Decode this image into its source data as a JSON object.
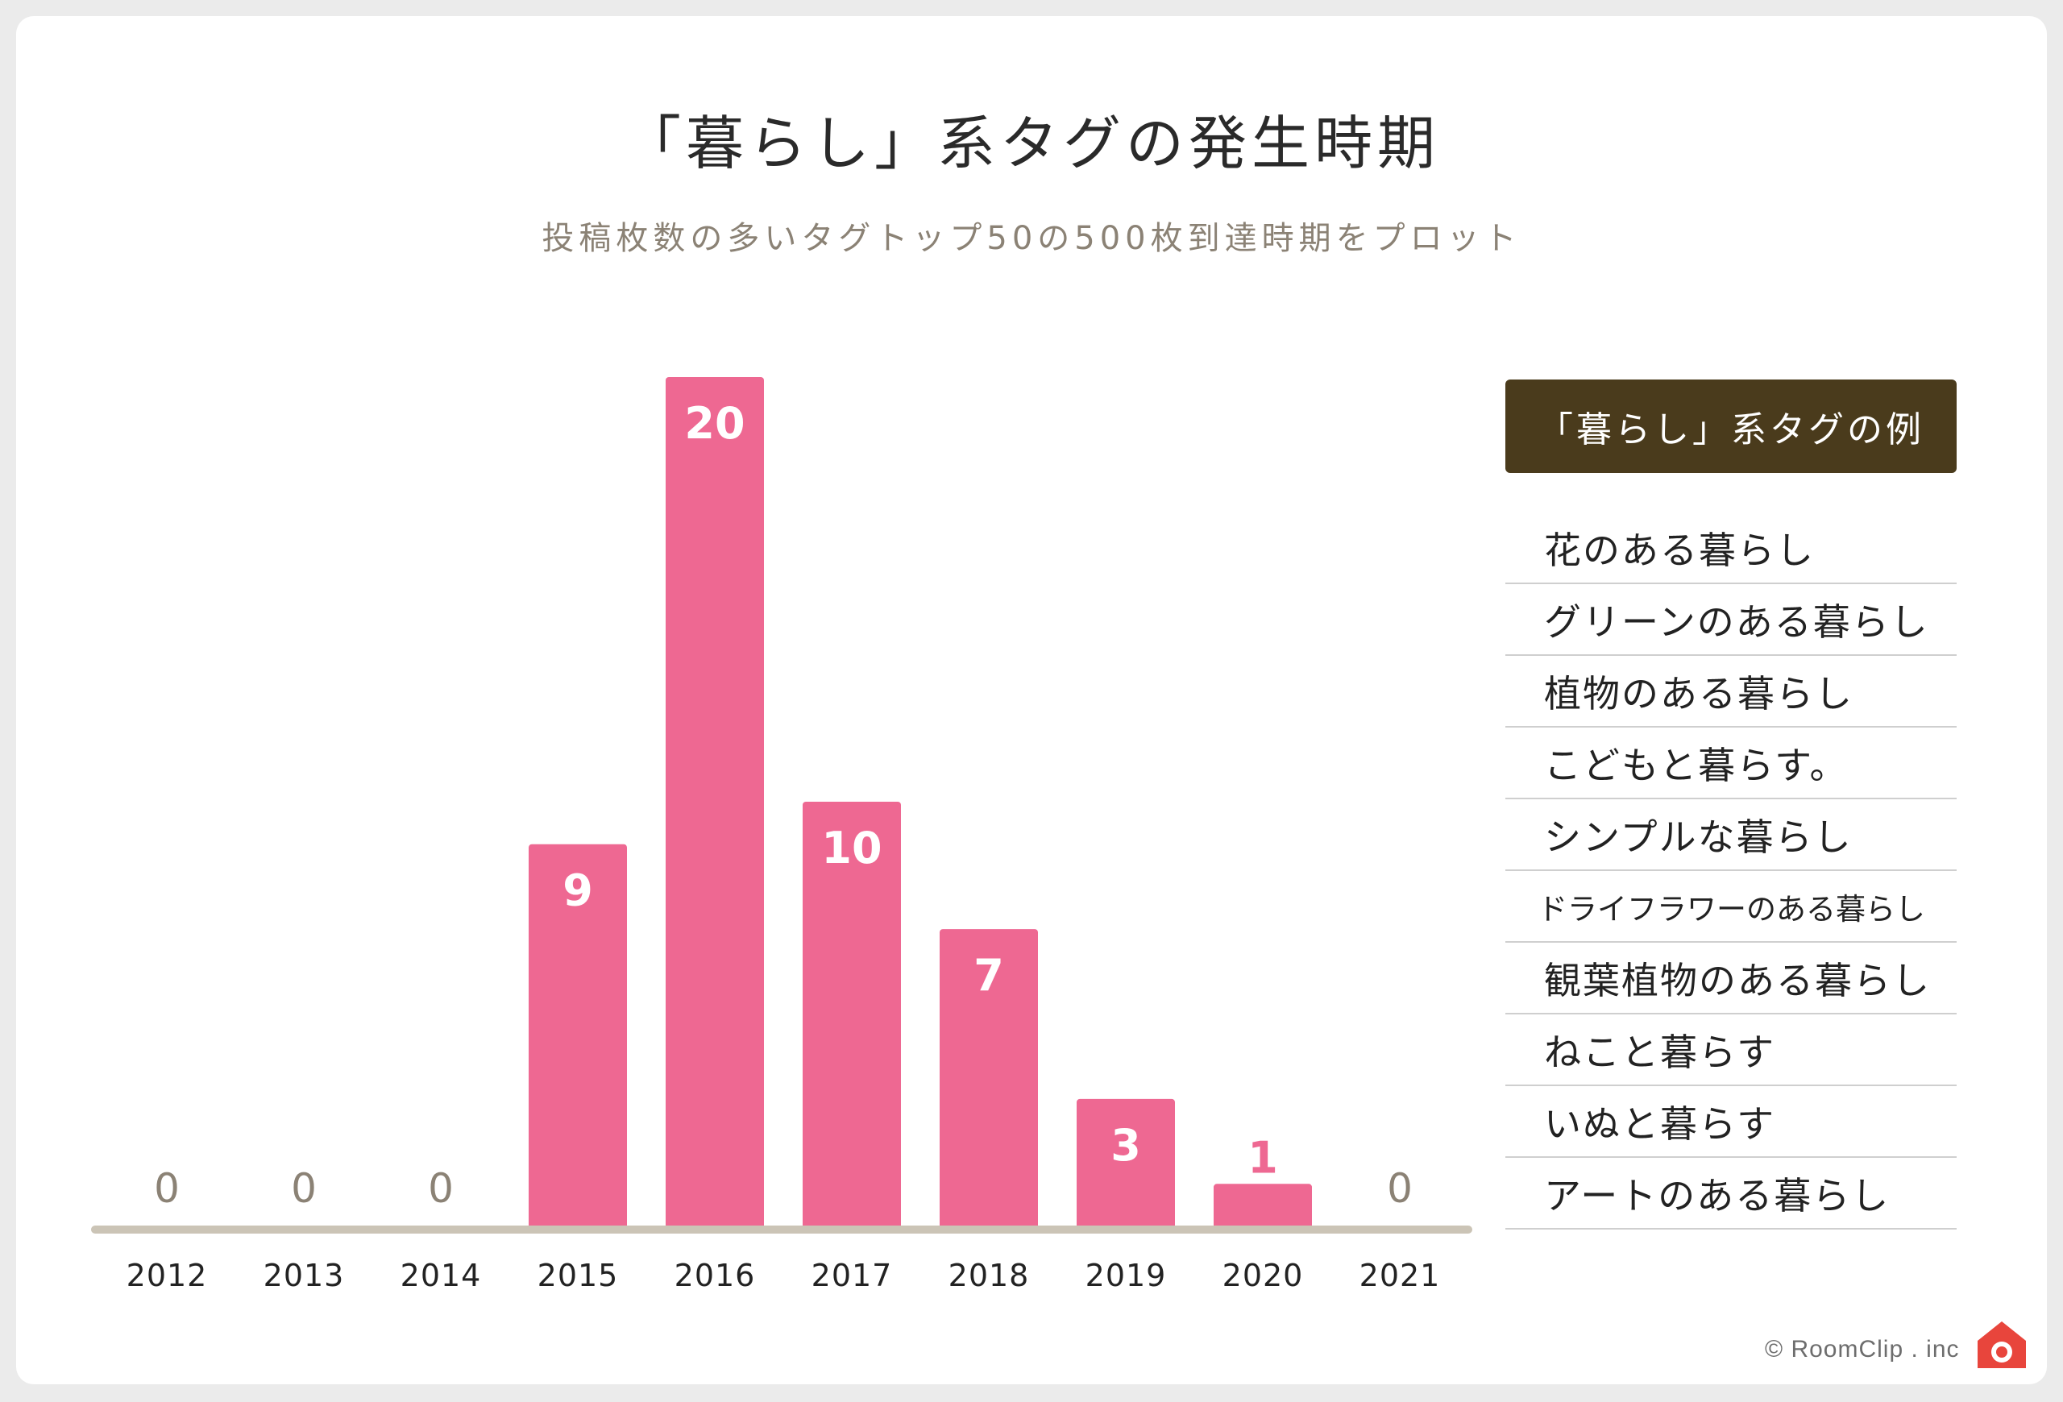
{
  "colors": {
    "bar": "#ee6892",
    "axis": "#cbc4b6",
    "zero_label": "#8b8275",
    "legend_header_bg": "#4a3b1c"
  },
  "chart_data": {
    "type": "bar",
    "title": "「暮らし」系タグの発生時期",
    "subtitle": "投稿枚数の多いタグトップ50の500枚到達時期をプロット",
    "categories": [
      "2012",
      "2013",
      "2014",
      "2015",
      "2016",
      "2017",
      "2018",
      "2019",
      "2020",
      "2021"
    ],
    "values": [
      0,
      0,
      0,
      9,
      20,
      10,
      7,
      3,
      1,
      0
    ],
    "ylim": [
      0,
      20
    ],
    "xlabel": "",
    "ylabel": "",
    "grid": false
  },
  "legend": {
    "title": "「暮らし」系タグの例",
    "items": [
      "花のある暮らし",
      "グリーンのある暮らし",
      "植物のある暮らし",
      "こどもと暮らす。",
      "シンプルな暮らし",
      "ドライフラワーのある暮らし",
      "観葉植物のある暮らし",
      "ねこと暮らす",
      "いぬと暮らす",
      "アートのある暮らし"
    ]
  },
  "footer": {
    "copyright": "© RoomClip . inc",
    "logo_icon": "roomclip-house-camera-icon"
  }
}
